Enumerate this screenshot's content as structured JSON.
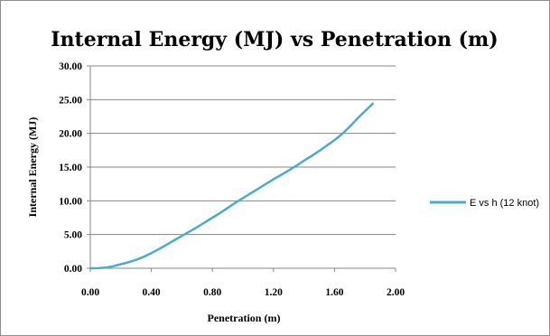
{
  "chart_data": {
    "type": "line",
    "title": "Internal Energy (MJ) vs Penetration (m)",
    "xlabel": "Penetration (m)",
    "ylabel": "Internal Energy (MJ)",
    "xlim": [
      0,
      2
    ],
    "ylim": [
      0,
      30
    ],
    "x_ticks": [
      "0.00",
      "0.40",
      "0.80",
      "1.20",
      "1.60",
      "2.00"
    ],
    "y_ticks": [
      "0.00",
      "5.00",
      "10.00",
      "15.00",
      "20.00",
      "25.00",
      "30.00"
    ],
    "x_tick_values": [
      0,
      0.4,
      0.8,
      1.2,
      1.6,
      2.0
    ],
    "y_tick_values": [
      0,
      5,
      10,
      15,
      20,
      25,
      30
    ],
    "grid": "horizontal",
    "legend_position": "right",
    "series": [
      {
        "name": "E vs h (12 knot)",
        "color": "#4bacc6",
        "x": [
          0.0,
          0.05,
          0.1,
          0.15,
          0.2,
          0.25,
          0.3,
          0.35,
          0.4,
          0.45,
          0.5,
          0.55,
          0.6,
          0.65,
          0.7,
          0.75,
          0.8,
          0.85,
          0.9,
          0.95,
          1.0,
          1.05,
          1.1,
          1.15,
          1.2,
          1.25,
          1.3,
          1.35,
          1.4,
          1.45,
          1.5,
          1.55,
          1.6,
          1.65,
          1.7,
          1.75,
          1.8,
          1.85
        ],
        "y": [
          0.0,
          0.02,
          0.1,
          0.3,
          0.6,
          0.9,
          1.25,
          1.7,
          2.25,
          2.85,
          3.5,
          4.15,
          4.8,
          5.45,
          6.1,
          6.8,
          7.5,
          8.2,
          8.95,
          9.7,
          10.4,
          11.1,
          11.8,
          12.5,
          13.2,
          13.85,
          14.5,
          15.2,
          15.95,
          16.65,
          17.4,
          18.2,
          19.0,
          19.9,
          21.0,
          22.2,
          23.3,
          24.4
        ]
      }
    ]
  }
}
